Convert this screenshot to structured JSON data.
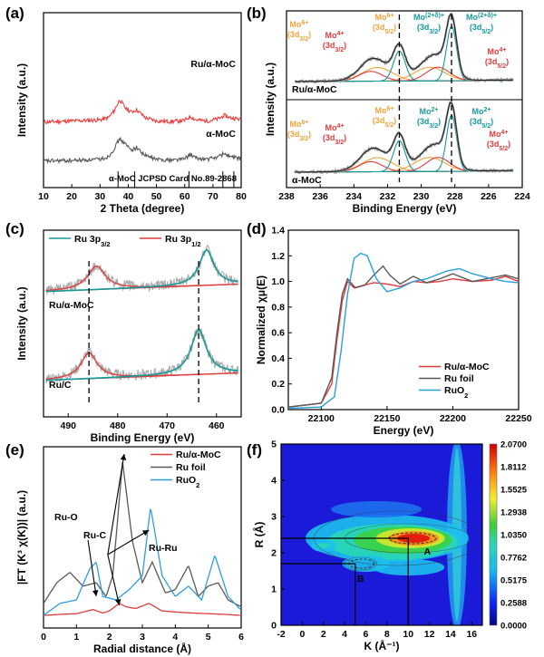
{
  "chart_data": [
    {
      "panel": "(a)",
      "type": "line",
      "xlabel": "2 Theta (degree)",
      "ylabel": "Intensity (a.u.)",
      "xlim": [
        10,
        80
      ],
      "xticks": [
        "10",
        "20",
        "30",
        "40",
        "50",
        "60",
        "70",
        "80"
      ],
      "series": [
        {
          "name": "Ru/α-MoC",
          "color": "#ef3b3b",
          "x": [
            10,
            20,
            30,
            33,
            35,
            37,
            39,
            41,
            43,
            46,
            50,
            55,
            60,
            62,
            64,
            68,
            72,
            74,
            76,
            80
          ],
          "values": [
            60,
            62,
            64,
            68,
            80,
            100,
            85,
            78,
            82,
            68,
            62,
            61,
            63,
            70,
            64,
            62,
            66,
            72,
            68,
            65
          ]
        },
        {
          "name": "α-MoC",
          "color": "#595959",
          "x": [
            10,
            20,
            30,
            33,
            35,
            37,
            39,
            41,
            43,
            46,
            50,
            55,
            60,
            62,
            64,
            68,
            72,
            74,
            76,
            80
          ],
          "values": [
            8,
            9,
            11,
            16,
            30,
            48,
            38,
            28,
            32,
            18,
            11,
            10,
            12,
            20,
            13,
            11,
            16,
            22,
            16,
            12
          ]
        }
      ],
      "reference": {
        "label": "α-MoC JCPSD Card No.89-2868",
        "lines": [
          36.4,
          42.3,
          61.5,
          73.5,
          77.4
        ]
      }
    },
    {
      "panel": "(b)",
      "type": "line",
      "xlabel": "Binding Energy (eV)",
      "ylabel": "Intensity (a.u.)",
      "xlim": [
        238,
        224
      ],
      "xticks": [
        "238",
        "236",
        "234",
        "232",
        "230",
        "228",
        "226",
        "224"
      ],
      "samples": [
        "Ru/α-MoC",
        "α-MoC"
      ],
      "reference_lines": [
        231.3,
        228.2
      ],
      "labels_top": [
        {
          "sup": "6+",
          "sub": "3/2",
          "color": "#f2a33a"
        },
        {
          "sup": "4+",
          "sub": "3/2",
          "color": "#e03c3c"
        },
        {
          "sup": "6+",
          "sub": "5/2",
          "color": "#f2a33a"
        },
        {
          "sup": "(2+δ)+",
          "sub": "3/2",
          "color": "#159a9a"
        },
        {
          "sup": "(2+δ)+",
          "sub": "5/2",
          "color": "#159a9a"
        },
        {
          "sup": "4+",
          "sub": "5/2",
          "color": "#e03c3c"
        }
      ],
      "labels_bottom": [
        {
          "sup": "6+",
          "sub": "3/2",
          "color": "#f2a33a"
        },
        {
          "sup": "4+",
          "sub": "3/2",
          "color": "#e03c3c"
        },
        {
          "sup": "6+",
          "sub": "5/2",
          "color": "#f2a33a"
        },
        {
          "sup": "2+",
          "sub": "3/2",
          "color": "#159a9a"
        },
        {
          "sup": "2+",
          "sub": "5/2",
          "color": "#159a9a"
        },
        {
          "sup": "4+",
          "sub": "5/2",
          "color": "#e03c3c"
        }
      ]
    },
    {
      "panel": "(c)",
      "type": "line",
      "xlabel": "Binding Energy (eV)",
      "ylabel": "Intensity (a.u.)",
      "xlim": [
        495,
        455
      ],
      "xticks": [
        "490",
        "480",
        "470",
        "460"
      ],
      "legend": [
        {
          "name": "Ru 3p",
          "sub": "3/2",
          "color": "#159a9a"
        },
        {
          "name": "Ru 3p",
          "sub": "1/2",
          "color": "#e03c3c"
        }
      ],
      "samples": [
        "Ru/α-MoC",
        "Ru/C"
      ],
      "reference_lines": [
        485.8,
        463.6
      ]
    },
    {
      "panel": "(d)",
      "type": "line",
      "xlabel": "Energy (eV)",
      "ylabel": "Normalized χμ(E)",
      "xlim": [
        22075,
        22250
      ],
      "ylim": [
        0,
        1.4
      ],
      "xticks": [
        "22100",
        "22150",
        "22200",
        "22250"
      ],
      "yticks": [
        "0.0",
        "0.2",
        "0.4",
        "0.6",
        "0.8",
        "1.0",
        "1.2",
        "1.4"
      ],
      "series": [
        {
          "name": "Ru/α-MoC",
          "color": "#e03c3c",
          "x": [
            22075,
            22100,
            22108,
            22112,
            22116,
            22120,
            22125,
            22132,
            22140,
            22150,
            22160,
            22170,
            22180,
            22190,
            22200,
            22215,
            22230,
            22240,
            22250
          ],
          "values": [
            0.02,
            0.05,
            0.2,
            0.55,
            0.85,
            1.0,
            0.95,
            0.97,
            0.99,
            0.98,
            0.96,
            1.0,
            0.99,
            1.0,
            1.02,
            1.0,
            1.01,
            1.04,
            1.0
          ]
        },
        {
          "name": "Ru foil",
          "color": "#595959",
          "x": [
            22075,
            22100,
            22108,
            22112,
            22116,
            22120,
            22126,
            22133,
            22140,
            22147,
            22152,
            22160,
            22170,
            22180,
            22190,
            22200,
            22215,
            22230,
            22240,
            22250
          ],
          "values": [
            0.02,
            0.05,
            0.25,
            0.6,
            0.9,
            1.02,
            0.95,
            0.97,
            1.05,
            1.12,
            1.05,
            0.98,
            1.04,
            0.99,
            1.02,
            1.06,
            1.0,
            1.03,
            1.05,
            1.02
          ]
        },
        {
          "name": "RuO",
          "sub": "2",
          "color": "#2a9ee0",
          "x": [
            22075,
            22100,
            22110,
            22115,
            22120,
            22125,
            22130,
            22135,
            22142,
            22150,
            22160,
            22170,
            22180,
            22195,
            22205,
            22215,
            22230,
            22240,
            22250
          ],
          "values": [
            0.01,
            0.02,
            0.1,
            0.45,
            0.9,
            1.18,
            1.22,
            1.2,
            1.02,
            0.92,
            0.95,
            1.0,
            1.02,
            1.08,
            1.1,
            1.06,
            1.02,
            1.0,
            0.99
          ]
        }
      ]
    },
    {
      "panel": "(e)",
      "type": "line",
      "xlabel": "Radial distance (Å)",
      "ylabel": "|FT (K³ χ(K))| (a.u.)",
      "xlim": [
        0,
        6
      ],
      "xticks": [
        "0",
        "1",
        "2",
        "3",
        "4",
        "5",
        "6"
      ],
      "annotations": [
        "Ru-O",
        "Ru-C",
        "Ru-Ru"
      ],
      "series": [
        {
          "name": "Ru/α-MoC",
          "color": "#e03c3c",
          "x": [
            0,
            0.5,
            1.0,
            1.5,
            1.8,
            2.0,
            2.3,
            2.5,
            2.8,
            3.2,
            3.6,
            4.0,
            4.5,
            5.0,
            5.5,
            6.0
          ],
          "values": [
            0.05,
            0.08,
            0.1,
            0.22,
            0.12,
            0.18,
            0.4,
            0.3,
            0.25,
            0.4,
            0.18,
            0.15,
            0.12,
            0.1,
            0.08,
            0.05
          ]
        },
        {
          "name": "Ru foil",
          "color": "#595959",
          "x": [
            0,
            0.4,
            0.8,
            1.2,
            1.6,
            1.9,
            2.1,
            2.4,
            2.7,
            3.0,
            3.3,
            3.7,
            4.0,
            4.4,
            4.7,
            5.0,
            5.3,
            5.6,
            6.0
          ],
          "values": [
            0.4,
            1.0,
            1.3,
            0.9,
            1.0,
            0.6,
            1.2,
            4.5,
            2.2,
            1.0,
            1.6,
            0.7,
            0.8,
            1.5,
            0.6,
            0.9,
            1.0,
            0.5,
            0.3
          ]
        },
        {
          "name": "RuO",
          "sub": "2",
          "color": "#2a9ee0",
          "x": [
            0,
            0.5,
            1.0,
            1.4,
            1.6,
            1.8,
            2.2,
            2.6,
            3.0,
            3.25,
            3.6,
            4.0,
            4.4,
            4.8,
            5.2,
            5.6,
            6.0
          ],
          "values": [
            0.05,
            0.4,
            0.5,
            1.4,
            1.6,
            0.6,
            0.5,
            0.8,
            1.2,
            3.2,
            1.2,
            0.6,
            0.9,
            0.5,
            1.8,
            0.6,
            0.2
          ]
        }
      ]
    },
    {
      "panel": "(f)",
      "type": "heatmap",
      "xlabel": "K (Å⁻¹)",
      "ylabel": "R (Å)",
      "xlim": [
        -2,
        17
      ],
      "ylim": [
        0,
        5
      ],
      "xticks": [
        "-2",
        "0",
        "2",
        "4",
        "6",
        "8",
        "10",
        "12",
        "14",
        "16"
      ],
      "yticks": [
        "0",
        "1",
        "2",
        "3",
        "4",
        "5"
      ],
      "colorbar": [
        "2.0700",
        "1.8112",
        "1.5525",
        "1.2938",
        "1.0350",
        "0.7762",
        "0.5175",
        "0.2588",
        "0.0000"
      ],
      "points": [
        {
          "label": "A",
          "k": 10,
          "r": 2.4
        },
        {
          "label": "B",
          "k": 5,
          "r": 1.7
        }
      ]
    }
  ],
  "panel_a_labels": {
    "s1": "Ru/α-MoC",
    "s2": "α-MoC"
  },
  "panel_b_labels": {
    "s1": "Ru/α-MoC",
    "s2": "α-MoC"
  },
  "panel_c_labels": {
    "s1": "Ru/α-MoC",
    "s2": "Ru/C"
  }
}
